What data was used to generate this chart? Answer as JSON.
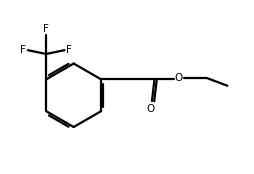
{
  "bg_color": "#ffffff",
  "line_color": "#000000",
  "line_width": 1.6,
  "fig_width": 2.54,
  "fig_height": 1.74,
  "dpi": 100,
  "xlim": [
    0,
    10
  ],
  "ylim": [
    0,
    6.85
  ]
}
